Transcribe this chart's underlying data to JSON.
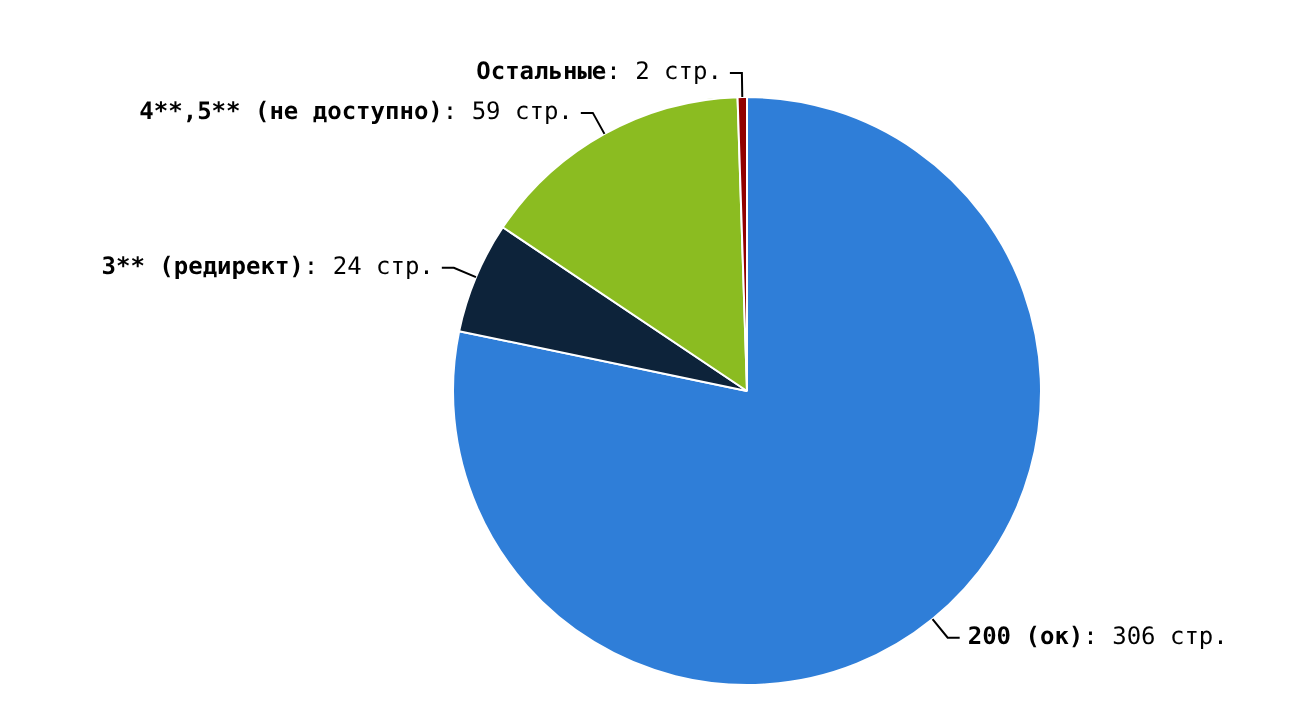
{
  "chart_data": {
    "type": "pie",
    "categories": [
      "200 (ок)",
      "3** (редирект)",
      "4**,5** (не доступно)",
      "Остальные"
    ],
    "values": [
      306,
      24,
      59,
      2
    ],
    "value_labels": [
      ": 306 стр.",
      ": 24 стр.",
      ": 59 стр.",
      ": 2 стр."
    ],
    "colors": [
      "#2f7ed8",
      "#0d233a",
      "#8bbc21",
      "#910000"
    ],
    "legend": false
  }
}
